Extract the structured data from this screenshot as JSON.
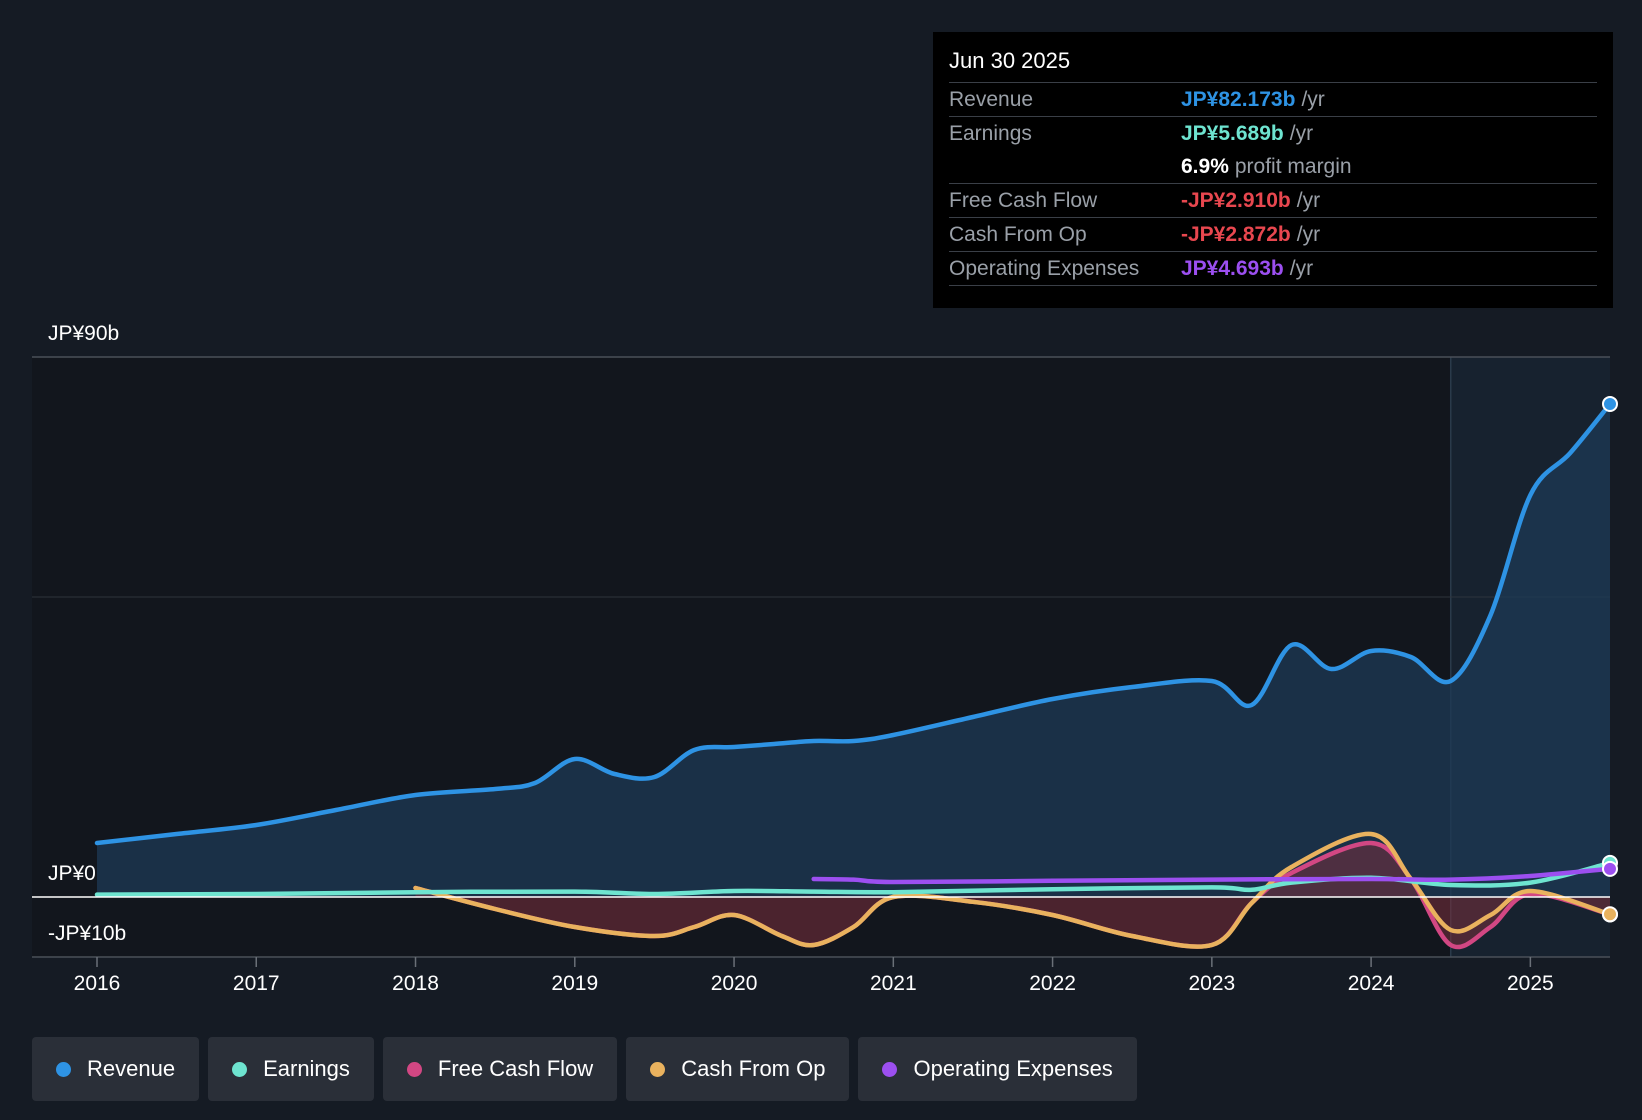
{
  "chart_data": {
    "type": "area",
    "y_axis_labels": [
      "JP¥90b",
      "JP¥0",
      "-JP¥10b"
    ],
    "ylim": [
      -10,
      90
    ],
    "xlim": [
      2016,
      2025.5
    ],
    "x_ticks": [
      2016,
      2017,
      2018,
      2019,
      2020,
      2021,
      2022,
      2023,
      2024,
      2025
    ],
    "x_tick_labels": [
      "2016",
      "2017",
      "2018",
      "2019",
      "2020",
      "2021",
      "2022",
      "2023",
      "2024",
      "2025"
    ],
    "highlight_from": 2024.5,
    "series": [
      {
        "name": "Revenue",
        "color": "#2e93e4",
        "fill": true,
        "x": [
          2016,
          2016.5,
          2017,
          2017.5,
          2018,
          2018.5,
          2018.75,
          2019,
          2019.25,
          2019.5,
          2019.75,
          2020,
          2020.25,
          2020.5,
          2020.75,
          2021,
          2021.5,
          2022,
          2022.5,
          2023,
          2023.25,
          2023.5,
          2023.75,
          2024,
          2024.25,
          2024.5,
          2024.75,
          2025,
          2025.25,
          2025.5
        ],
        "y": [
          9,
          10.5,
          12,
          14.5,
          17,
          18,
          19,
          23,
          20.5,
          20,
          24.5,
          25,
          25.5,
          26,
          26,
          27,
          30,
          33,
          35,
          36,
          32,
          42,
          38,
          41,
          40,
          36,
          47,
          67,
          74,
          82.173
        ]
      },
      {
        "name": "Earnings",
        "color": "#6ee4d0",
        "fill": false,
        "x": [
          2016,
          2017,
          2018,
          2019,
          2019.5,
          2020,
          2020.5,
          2021,
          2022,
          2023,
          2023.25,
          2023.5,
          2024,
          2024.5,
          2025,
          2025.5
        ],
        "y": [
          0.4,
          0.5,
          0.8,
          0.9,
          0.5,
          1,
          0.9,
          0.8,
          1.3,
          1.6,
          1.2,
          2.4,
          3.2,
          2,
          2.4,
          5.689
        ]
      },
      {
        "name": "Free Cash Flow",
        "color": "#d24783",
        "fill": true,
        "x": [
          2018,
          2018.5,
          2019,
          2019.5,
          2019.75,
          2020,
          2020.3,
          2020.5,
          2020.75,
          2021,
          2021.5,
          2022,
          2022.5,
          2023,
          2023.25,
          2023.5,
          2024,
          2024.25,
          2024.5,
          2024.75,
          2025,
          2025.5
        ],
        "y": [
          1.5,
          -2,
          -5,
          -6.5,
          -5,
          -3,
          -6.5,
          -8,
          -5,
          0,
          -0.8,
          -3,
          -6.5,
          -8,
          -1,
          4,
          9,
          3,
          -8,
          -5,
          0.5,
          -2.91
        ]
      },
      {
        "name": "Cash From Op",
        "color": "#e9b25e",
        "fill": false,
        "x": [
          2018,
          2018.5,
          2019,
          2019.5,
          2019.75,
          2020,
          2020.3,
          2020.5,
          2020.75,
          2021,
          2021.5,
          2022,
          2022.5,
          2023,
          2023.25,
          2023.5,
          2024,
          2024.25,
          2024.5,
          2024.75,
          2025,
          2025.5
        ],
        "y": [
          1.5,
          -2,
          -5,
          -6.5,
          -5,
          -3,
          -6.5,
          -8,
          -5,
          0,
          -0.8,
          -3,
          -6.5,
          -8,
          -1,
          5,
          10.5,
          3,
          -5.5,
          -3,
          1,
          -2.872
        ]
      },
      {
        "name": "Operating Expenses",
        "color": "#9c4ff0",
        "fill": false,
        "x": [
          2020.5,
          2020.75,
          2021,
          2022,
          2023,
          2024,
          2024.5,
          2025,
          2025.5
        ],
        "y": [
          3,
          2.9,
          2.5,
          2.7,
          2.9,
          3,
          2.9,
          3.5,
          4.693
        ]
      }
    ]
  },
  "tooltip": {
    "date": "Jun 30 2025",
    "unit": "/yr",
    "revenue": {
      "label": "Revenue",
      "value": "JP¥82.173b",
      "color": "#2e93e4"
    },
    "earnings": {
      "label": "Earnings",
      "value": "JP¥5.689b",
      "color": "#6ee4d0"
    },
    "margin": {
      "value": "6.9%",
      "text": "profit margin"
    },
    "fcf": {
      "label": "Free Cash Flow",
      "value": "-JP¥2.910b",
      "color": "#e8474f"
    },
    "cfo": {
      "label": "Cash From Op",
      "value": "-JP¥2.872b",
      "color": "#e8474f"
    },
    "opex": {
      "label": "Operating Expenses",
      "value": "JP¥4.693b",
      "color": "#9c4ff0"
    }
  },
  "legend": {
    "items": [
      {
        "label": "Revenue",
        "color": "#2e93e4"
      },
      {
        "label": "Earnings",
        "color": "#6ee4d0"
      },
      {
        "label": "Free Cash Flow",
        "color": "#d24783"
      },
      {
        "label": "Cash From Op",
        "color": "#e9b25e"
      },
      {
        "label": "Operating Expenses",
        "color": "#9c4ff0"
      }
    ]
  }
}
